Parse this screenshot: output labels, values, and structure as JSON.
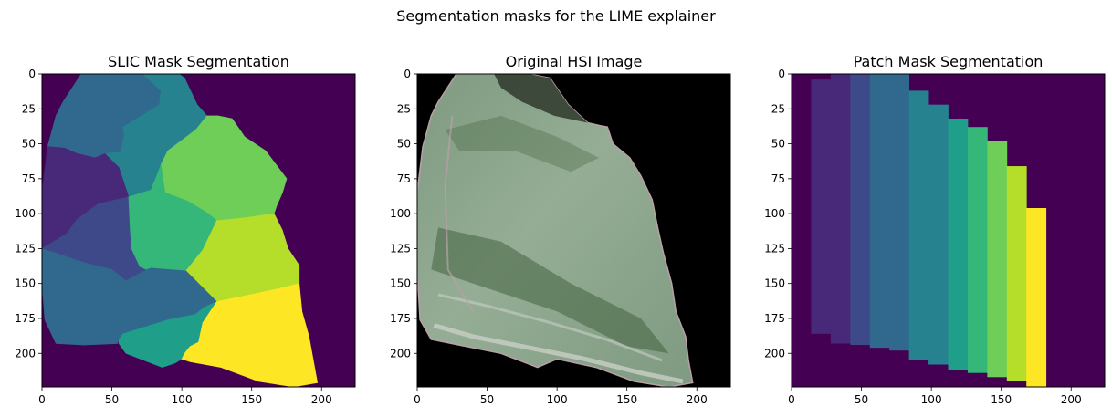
{
  "figure": {
    "suptitle": "Segmentation masks for the LIME explainer"
  },
  "palette": {
    "viridis": [
      "#440154",
      "#482878",
      "#3e4989",
      "#31688e",
      "#26828e",
      "#1f9e89",
      "#35b779",
      "#6ece58",
      "#b5de2b",
      "#fde725"
    ],
    "hsi_background": "#000000",
    "hsi_field_light": "#95ad95",
    "hsi_field_mid": "#7e9a80",
    "hsi_field_dark": "#44633f",
    "hsi_stripe": "#c8cfc6",
    "hsi_edge_pink": "#b9a0a7"
  },
  "chart_data": [
    {
      "type": "heatmap",
      "title": "SLIC Mask Segmentation",
      "xlim": [
        0,
        224
      ],
      "ylim": [
        224,
        0
      ],
      "xticks": [
        0,
        50,
        100,
        150,
        200
      ],
      "yticks": [
        0,
        25,
        50,
        75,
        100,
        125,
        150,
        175,
        200
      ],
      "background_label": 0,
      "colormap": "viridis",
      "segments": [
        {
          "label": 3,
          "color_index": 3,
          "polygon": [
            [
              28,
              0
            ],
            [
              72,
              0
            ],
            [
              85,
              12
            ],
            [
              84,
              22
            ],
            [
              58,
              38
            ],
            [
              59,
              44
            ],
            [
              56,
              56
            ],
            [
              45,
              57
            ],
            [
              38,
              60
            ],
            [
              25,
              57
            ],
            [
              16,
              53
            ],
            [
              4,
              52
            ],
            [
              10,
              30
            ],
            [
              15,
              20
            ]
          ]
        },
        {
          "label": 4,
          "color_index": 4,
          "polygon": [
            [
              72,
              0
            ],
            [
              98,
              0
            ],
            [
              102,
              3
            ],
            [
              111,
              22
            ],
            [
              118,
              30
            ],
            [
              110,
              40
            ],
            [
              90,
              55
            ],
            [
              85,
              65
            ],
            [
              82,
              73
            ],
            [
              78,
              83
            ],
            [
              62,
              88
            ],
            [
              55,
              67
            ],
            [
              45,
              57
            ],
            [
              56,
              56
            ],
            [
              59,
              44
            ],
            [
              58,
              38
            ],
            [
              84,
              22
            ],
            [
              85,
              12
            ]
          ]
        },
        {
          "label": 1,
          "color_index": 1,
          "polygon": [
            [
              4,
              52
            ],
            [
              16,
              53
            ],
            [
              25,
              57
            ],
            [
              38,
              60
            ],
            [
              45,
              57
            ],
            [
              55,
              67
            ],
            [
              62,
              88
            ],
            [
              40,
              93
            ],
            [
              25,
              104
            ],
            [
              18,
              114
            ],
            [
              0,
              125
            ],
            [
              0,
              85
            ]
          ]
        },
        {
          "label": 2,
          "color_index": 2,
          "polygon": [
            [
              0,
              125
            ],
            [
              18,
              114
            ],
            [
              25,
              104
            ],
            [
              40,
              93
            ],
            [
              62,
              88
            ],
            [
              63,
              110
            ],
            [
              64,
              125
            ],
            [
              70,
              138
            ],
            [
              75,
              140
            ],
            [
              60,
              148
            ],
            [
              50,
              140
            ],
            [
              30,
              135
            ],
            [
              0,
              125
            ]
          ]
        },
        {
          "label": 7,
          "color_index": 7,
          "polygon": [
            [
              118,
              30
            ],
            [
              126,
              30
            ],
            [
              136,
              32
            ],
            [
              145,
              45
            ],
            [
              160,
              55
            ],
            [
              175,
              75
            ],
            [
              172,
              85
            ],
            [
              168,
              94
            ],
            [
              166,
              100
            ],
            [
              145,
              103
            ],
            [
              125,
              105
            ],
            [
              119,
              100
            ],
            [
              104,
              91
            ],
            [
              88,
              85
            ],
            [
              85,
              65
            ],
            [
              90,
              55
            ],
            [
              110,
              40
            ]
          ]
        },
        {
          "label": 6,
          "color_index": 6,
          "polygon": [
            [
              82,
              73
            ],
            [
              85,
              65
            ],
            [
              88,
              85
            ],
            [
              104,
              91
            ],
            [
              119,
              100
            ],
            [
              125,
              105
            ],
            [
              115,
              126
            ],
            [
              103,
              141
            ],
            [
              78,
              139
            ],
            [
              75,
              140
            ],
            [
              70,
              138
            ],
            [
              64,
              125
            ],
            [
              63,
              110
            ],
            [
              62,
              88
            ],
            [
              78,
              83
            ]
          ]
        },
        {
          "label": 8,
          "color_index": 8,
          "polygon": [
            [
              125,
              105
            ],
            [
              145,
              103
            ],
            [
              166,
              100
            ],
            [
              172,
              112
            ],
            [
              176,
              125
            ],
            [
              184,
              137
            ],
            [
              184,
              150
            ],
            [
              168,
              154
            ],
            [
              125,
              163
            ],
            [
              103,
              141
            ],
            [
              115,
              126
            ]
          ]
        },
        {
          "label": 3,
          "color_index": 3,
          "polygon": [
            [
              0,
              125
            ],
            [
              30,
              135
            ],
            [
              50,
              140
            ],
            [
              60,
              148
            ],
            [
              75,
              140
            ],
            [
              78,
              139
            ],
            [
              103,
              141
            ],
            [
              125,
              163
            ],
            [
              116,
              167
            ],
            [
              110,
              172
            ],
            [
              90,
              176
            ],
            [
              58,
              186
            ],
            [
              55,
              190
            ],
            [
              54,
              193
            ],
            [
              30,
              194
            ],
            [
              10,
              193
            ],
            [
              2,
              176
            ],
            [
              0,
              150
            ]
          ]
        },
        {
          "label": 5,
          "color_index": 5,
          "polygon": [
            [
              58,
              186
            ],
            [
              90,
              176
            ],
            [
              110,
              172
            ],
            [
              116,
              167
            ],
            [
              125,
              163
            ],
            [
              115,
              178
            ],
            [
              112,
              192
            ],
            [
              106,
              195
            ],
            [
              102,
              200
            ],
            [
              100,
              204
            ],
            [
              95,
              207
            ],
            [
              86,
              210
            ],
            [
              60,
              200
            ],
            [
              55,
              193
            ],
            [
              55,
              190
            ]
          ]
        },
        {
          "label": 9,
          "color_index": 9,
          "polygon": [
            [
              125,
              163
            ],
            [
              168,
              154
            ],
            [
              184,
              150
            ],
            [
              186,
              170
            ],
            [
              191,
              188
            ],
            [
              195,
              210
            ],
            [
              197,
              221
            ],
            [
              180,
              224
            ],
            [
              155,
              220
            ],
            [
              128,
              210
            ],
            [
              106,
              206
            ],
            [
              100,
              204
            ],
            [
              102,
              200
            ],
            [
              106,
              195
            ],
            [
              112,
              192
            ],
            [
              115,
              178
            ]
          ]
        }
      ]
    },
    {
      "type": "image",
      "title": "Original HSI Image",
      "xlim": [
        0,
        224
      ],
      "ylim": [
        224,
        0
      ],
      "xticks": [
        0,
        50,
        100,
        150,
        200
      ],
      "yticks": [
        0,
        25,
        50,
        75,
        100,
        125,
        150,
        175,
        200
      ],
      "background": "black",
      "field_outline": [
        [
          28,
          0
        ],
        [
          80,
          0
        ],
        [
          95,
          3
        ],
        [
          108,
          22
        ],
        [
          122,
          35
        ],
        [
          131,
          37
        ],
        [
          136,
          38
        ],
        [
          140,
          50
        ],
        [
          152,
          60
        ],
        [
          160,
          73
        ],
        [
          168,
          90
        ],
        [
          172,
          110
        ],
        [
          176,
          128
        ],
        [
          182,
          150
        ],
        [
          185,
          170
        ],
        [
          192,
          188
        ],
        [
          194,
          205
        ],
        [
          197,
          221
        ],
        [
          180,
          224
        ],
        [
          155,
          220
        ],
        [
          128,
          210
        ],
        [
          100,
          204
        ],
        [
          86,
          210
        ],
        [
          60,
          200
        ],
        [
          30,
          194
        ],
        [
          10,
          190
        ],
        [
          2,
          176
        ],
        [
          0,
          140
        ],
        [
          0,
          85
        ],
        [
          4,
          52
        ],
        [
          10,
          30
        ],
        [
          15,
          20
        ]
      ]
    },
    {
      "type": "heatmap",
      "title": "Patch Mask Segmentation",
      "xlim": [
        0,
        224
      ],
      "ylim": [
        224,
        0
      ],
      "xticks": [
        0,
        50,
        100,
        150,
        200
      ],
      "yticks": [
        0,
        25,
        50,
        75,
        100,
        125,
        150,
        175,
        200
      ],
      "background_label": 0,
      "colormap": "viridis",
      "patch_width": 14,
      "patch_start_x": 0,
      "patches": [
        {
          "x0": 0,
          "x1": 14,
          "top": 10,
          "bottom": 178,
          "color_index": 0
        },
        {
          "x0": 14,
          "x1": 28,
          "top": 4,
          "bottom": 186,
          "color_index": 1
        },
        {
          "x0": 28,
          "x1": 42,
          "top": 0,
          "bottom": 193,
          "color_index": 1
        },
        {
          "x0": 42,
          "x1": 56,
          "top": 0,
          "bottom": 194,
          "color_index": 2
        },
        {
          "x0": 56,
          "x1": 70,
          "top": 0,
          "bottom": 196,
          "color_index": 3
        },
        {
          "x0": 70,
          "x1": 84,
          "top": 0,
          "bottom": 198,
          "color_index": 3
        },
        {
          "x0": 84,
          "x1": 98,
          "top": 12,
          "bottom": 205,
          "color_index": 4
        },
        {
          "x0": 98,
          "x1": 112,
          "top": 22,
          "bottom": 208,
          "color_index": 4
        },
        {
          "x0": 112,
          "x1": 126,
          "top": 32,
          "bottom": 212,
          "color_index": 5
        },
        {
          "x0": 126,
          "x1": 140,
          "top": 38,
          "bottom": 214,
          "color_index": 6
        },
        {
          "x0": 140,
          "x1": 154,
          "top": 48,
          "bottom": 217,
          "color_index": 7
        },
        {
          "x0": 154,
          "x1": 168,
          "top": 66,
          "bottom": 220,
          "color_index": 8
        },
        {
          "x0": 168,
          "x1": 182,
          "top": 96,
          "bottom": 224,
          "color_index": 9
        }
      ]
    }
  ]
}
